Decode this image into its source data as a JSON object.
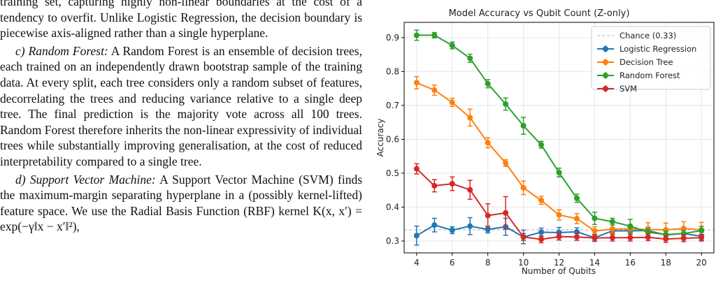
{
  "text": {
    "p1": "training set, capturing highly non-linear boundaries at the cost of a tendency to overfit. Unlike Logistic Regression, the decision boundary is piecewise axis-aligned rather than a single hyperplane.",
    "p2_heading": "c) Random Forest:",
    "p2_body": " A Random Forest is an ensemble of decision trees, each trained on an independently drawn bootstrap sample of the training data. At every split, each tree considers only a random subset of features, decorrelating the trees and reducing variance relative to a single deep tree. The final prediction is the majority vote across all 100 trees. Random Forest therefore inherits the non-linear expressivity of individual trees while substantially improving generalisation, at the cost of reduced interpretability compared to a single tree.",
    "p3_heading": "d) Support Vector Machine:",
    "p3_body": " A Support Vector Machine (SVM) finds the maximum-margin separating hyperplane in a (possibly kernel-lifted) feature space. We use the Radial Basis Function (RBF) kernel K(x, x′) = exp(−γ‖x − x′‖²),"
  },
  "chart_data": {
    "type": "line",
    "title": "Model Accuracy vs Qubit Count (Z-only)",
    "xlabel": "Number of Qubits",
    "ylabel": "Accuracy",
    "xlim": [
      3.3,
      20.7
    ],
    "ylim": [
      0.265,
      0.945
    ],
    "xticks": [
      4,
      6,
      8,
      10,
      12,
      14,
      16,
      18,
      20
    ],
    "yticks": [
      0.3,
      0.4,
      0.5,
      0.6,
      0.7,
      0.8,
      0.9
    ],
    "grid": true,
    "legend_position": "top-right",
    "chance": {
      "label": "Chance (0.33)",
      "value": 0.333,
      "color": "#b0b0b0"
    },
    "x": [
      4,
      5,
      6,
      7,
      8,
      9,
      10,
      11,
      12,
      13,
      14,
      15,
      16,
      17,
      18,
      19,
      20
    ],
    "series": [
      {
        "name": "Logistic Regression",
        "color": "#1f77b4",
        "values": [
          0.316,
          0.347,
          0.332,
          0.344,
          0.334,
          0.342,
          0.312,
          0.326,
          0.325,
          0.327,
          0.31,
          0.33,
          0.33,
          0.331,
          0.318,
          0.322,
          0.314
        ],
        "errors": [
          0.028,
          0.02,
          0.01,
          0.025,
          0.01,
          0.025,
          0.02,
          0.012,
          0.015,
          0.012,
          0.01,
          0.01,
          0.01,
          0.01,
          0.01,
          0.01,
          0.012
        ]
      },
      {
        "name": "Decision Tree",
        "color": "#ff7f0e",
        "values": [
          0.767,
          0.745,
          0.709,
          0.664,
          0.59,
          0.53,
          0.457,
          0.42,
          0.377,
          0.366,
          0.33,
          0.335,
          0.336,
          0.334,
          0.333,
          0.337,
          0.333
        ],
        "errors": [
          0.018,
          0.015,
          0.012,
          0.025,
          0.015,
          0.01,
          0.02,
          0.012,
          0.015,
          0.015,
          0.012,
          0.012,
          0.01,
          0.02,
          0.02,
          0.02,
          0.022
        ]
      },
      {
        "name": "Random Forest",
        "color": "#2ca02c",
        "values": [
          0.907,
          0.907,
          0.877,
          0.839,
          0.764,
          0.704,
          0.64,
          0.584,
          0.502,
          0.426,
          0.367,
          0.357,
          0.344,
          0.326,
          0.319,
          0.322,
          0.331
        ],
        "errors": [
          0.015,
          0.008,
          0.01,
          0.012,
          0.012,
          0.018,
          0.025,
          0.01,
          0.013,
          0.012,
          0.018,
          0.01,
          0.02,
          0.01,
          0.01,
          0.01,
          0.012
        ]
      },
      {
        "name": "SVM",
        "color": "#d62728",
        "values": [
          0.513,
          0.463,
          0.469,
          0.451,
          0.375,
          0.383,
          0.312,
          0.305,
          0.313,
          0.312,
          0.309,
          0.31,
          0.31,
          0.311,
          0.306,
          0.308,
          0.31
        ],
        "errors": [
          0.015,
          0.018,
          0.02,
          0.028,
          0.035,
          0.048,
          0.01,
          0.01,
          0.01,
          0.01,
          0.01,
          0.01,
          0.01,
          0.01,
          0.01,
          0.01,
          0.01
        ]
      }
    ]
  }
}
